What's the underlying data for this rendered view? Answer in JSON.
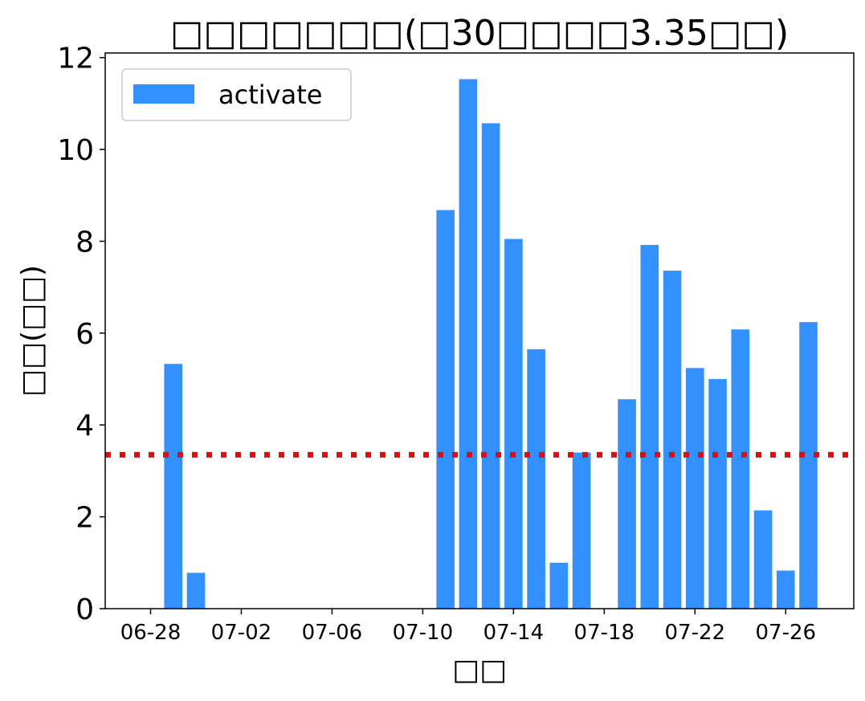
{
  "chart_data": {
    "type": "bar",
    "title": "□□□□□□□(□30□□□□3.35□□)",
    "xlabel": "□□",
    "ylabel": "□□(□□)",
    "legend": {
      "entries": [
        "activate"
      ],
      "position": "top-left"
    },
    "grid": false,
    "ylim": [
      0,
      12.1
    ],
    "yticks": [
      0,
      2,
      4,
      6,
      8,
      10,
      12
    ],
    "xlim": [
      "2025-06-26",
      "2025-07-29"
    ],
    "xticks": [
      "06-28",
      "07-02",
      "07-06",
      "07-10",
      "07-14",
      "07-18",
      "07-22",
      "07-26"
    ],
    "series": [
      {
        "name": "activate",
        "color": "#3390ff",
        "points": [
          {
            "date": "2025-06-29",
            "value": 5.33
          },
          {
            "date": "2025-06-30",
            "value": 0.78
          },
          {
            "date": "2025-07-11",
            "value": 8.68
          },
          {
            "date": "2025-07-12",
            "value": 11.53
          },
          {
            "date": "2025-07-13",
            "value": 10.57
          },
          {
            "date": "2025-07-14",
            "value": 8.05
          },
          {
            "date": "2025-07-15",
            "value": 5.65
          },
          {
            "date": "2025-07-16",
            "value": 1.0
          },
          {
            "date": "2025-07-17",
            "value": 3.4
          },
          {
            "date": "2025-07-19",
            "value": 4.56
          },
          {
            "date": "2025-07-20",
            "value": 7.92
          },
          {
            "date": "2025-07-21",
            "value": 7.36
          },
          {
            "date": "2025-07-22",
            "value": 5.24
          },
          {
            "date": "2025-07-23",
            "value": 5.0
          },
          {
            "date": "2025-07-24",
            "value": 6.08
          },
          {
            "date": "2025-07-25",
            "value": 2.14
          },
          {
            "date": "2025-07-26",
            "value": 0.83
          },
          {
            "date": "2025-07-27",
            "value": 6.24
          }
        ]
      }
    ],
    "reference_line": {
      "value": 3.35,
      "color": "#ff0000",
      "style": "dotted"
    }
  }
}
